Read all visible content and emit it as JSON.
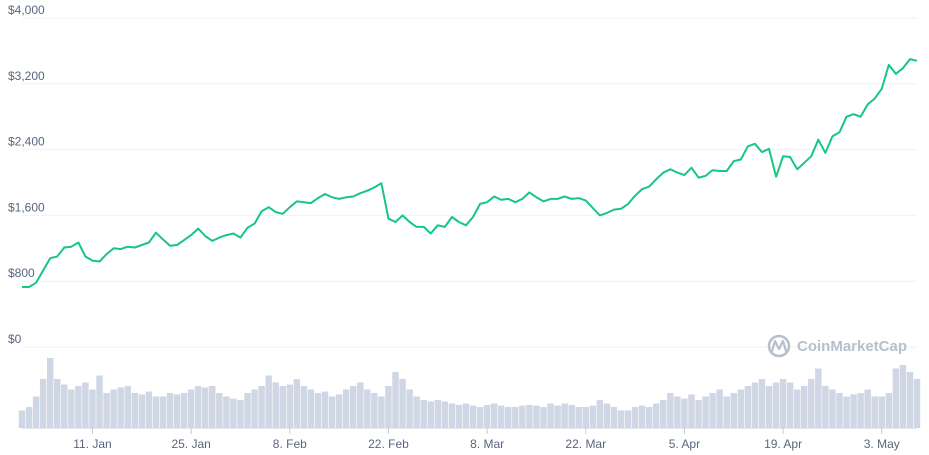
{
  "chart_data": {
    "type": "line",
    "watermark": "CoinMarketCap",
    "y_ticks": [
      "$0",
      "$800",
      "$1,600",
      "$2,400",
      "$3,200",
      "$4,000"
    ],
    "y_tick_values": [
      0,
      800,
      1600,
      2400,
      3200,
      4000
    ],
    "x_ticks": [
      "11. Jan",
      "25. Jan",
      "8. Feb",
      "22. Feb",
      "8. Mar",
      "22. Mar",
      "5. Apr",
      "19. Apr",
      "3. May"
    ],
    "x_tick_values": [
      "2021-01-11",
      "2021-01-25",
      "2021-02-08",
      "2021-02-22",
      "2021-03-08",
      "2021-03-22",
      "2021-04-05",
      "2021-04-19",
      "2021-05-03"
    ],
    "ylim": [
      0,
      4000
    ],
    "xlim": [
      "2021-01-01",
      "2021-05-08"
    ],
    "grid": true,
    "colors": {
      "price_line": "#16c784",
      "volume_bars": "#cfd6e4",
      "grid": "#eff2f5",
      "tick_text": "#58667e"
    },
    "price_series": {
      "dates": [
        "2021-01-01",
        "2021-01-02",
        "2021-01-03",
        "2021-01-04",
        "2021-01-05",
        "2021-01-06",
        "2021-01-07",
        "2021-01-08",
        "2021-01-09",
        "2021-01-10",
        "2021-01-11",
        "2021-01-12",
        "2021-01-13",
        "2021-01-14",
        "2021-01-15",
        "2021-01-16",
        "2021-01-17",
        "2021-01-18",
        "2021-01-19",
        "2021-01-20",
        "2021-01-21",
        "2021-01-22",
        "2021-01-23",
        "2021-01-24",
        "2021-01-25",
        "2021-01-26",
        "2021-01-27",
        "2021-01-28",
        "2021-01-29",
        "2021-01-30",
        "2021-01-31",
        "2021-02-01",
        "2021-02-02",
        "2021-02-03",
        "2021-02-04",
        "2021-02-05",
        "2021-02-06",
        "2021-02-07",
        "2021-02-08",
        "2021-02-09",
        "2021-02-10",
        "2021-02-11",
        "2021-02-12",
        "2021-02-13",
        "2021-02-14",
        "2021-02-15",
        "2021-02-16",
        "2021-02-17",
        "2021-02-18",
        "2021-02-19",
        "2021-02-20",
        "2021-02-21",
        "2021-02-22",
        "2021-02-23",
        "2021-02-24",
        "2021-02-25",
        "2021-02-26",
        "2021-02-27",
        "2021-02-28",
        "2021-03-01",
        "2021-03-02",
        "2021-03-03",
        "2021-03-04",
        "2021-03-05",
        "2021-03-06",
        "2021-03-07",
        "2021-03-08",
        "2021-03-09",
        "2021-03-10",
        "2021-03-11",
        "2021-03-12",
        "2021-03-13",
        "2021-03-14",
        "2021-03-15",
        "2021-03-16",
        "2021-03-17",
        "2021-03-18",
        "2021-03-19",
        "2021-03-20",
        "2021-03-21",
        "2021-03-22",
        "2021-03-23",
        "2021-03-24",
        "2021-03-25",
        "2021-03-26",
        "2021-03-27",
        "2021-03-28",
        "2021-03-29",
        "2021-03-30",
        "2021-03-31",
        "2021-04-01",
        "2021-04-02",
        "2021-04-03",
        "2021-04-04",
        "2021-04-05",
        "2021-04-06",
        "2021-04-07",
        "2021-04-08",
        "2021-04-09",
        "2021-04-10",
        "2021-04-11",
        "2021-04-12",
        "2021-04-13",
        "2021-04-14",
        "2021-04-15",
        "2021-04-16",
        "2021-04-17",
        "2021-04-18",
        "2021-04-19",
        "2021-04-20",
        "2021-04-21",
        "2021-04-22",
        "2021-04-23",
        "2021-04-24",
        "2021-04-25",
        "2021-04-26",
        "2021-04-27",
        "2021-04-28",
        "2021-04-29",
        "2021-04-30",
        "2021-05-01",
        "2021-05-02",
        "2021-05-03",
        "2021-05-04",
        "2021-05-05",
        "2021-05-06",
        "2021-05-07",
        "2021-05-08"
      ],
      "values": [
        730,
        730,
        780,
        930,
        1080,
        1100,
        1210,
        1220,
        1270,
        1100,
        1050,
        1040,
        1130,
        1200,
        1190,
        1220,
        1210,
        1240,
        1270,
        1390,
        1310,
        1230,
        1240,
        1300,
        1360,
        1440,
        1350,
        1290,
        1330,
        1360,
        1380,
        1330,
        1450,
        1500,
        1650,
        1700,
        1640,
        1620,
        1700,
        1770,
        1760,
        1750,
        1810,
        1860,
        1820,
        1800,
        1820,
        1830,
        1870,
        1900,
        1940,
        1990,
        1560,
        1520,
        1600,
        1520,
        1460,
        1460,
        1380,
        1480,
        1460,
        1580,
        1520,
        1480,
        1580,
        1740,
        1760,
        1830,
        1790,
        1800,
        1760,
        1800,
        1880,
        1820,
        1770,
        1800,
        1800,
        1830,
        1800,
        1810,
        1780,
        1690,
        1600,
        1630,
        1670,
        1680,
        1740,
        1840,
        1920,
        1950,
        2040,
        2120,
        2160,
        2120,
        2090,
        2180,
        2060,
        2080,
        2150,
        2140,
        2140,
        2260,
        2280,
        2440,
        2470,
        2370,
        2410,
        2070,
        2320,
        2310,
        2160,
        2240,
        2320,
        2520,
        2360,
        2560,
        2610,
        2800,
        2830,
        2800,
        2950,
        3020,
        3140,
        3430,
        3320,
        3390,
        3500,
        3480
      ],
      "stroke": "#16c784"
    },
    "volume_series": {
      "label": "Volume (relative, no axis shown)",
      "values": [
        0.25,
        0.3,
        0.45,
        0.7,
        1.0,
        0.7,
        0.62,
        0.55,
        0.6,
        0.65,
        0.55,
        0.75,
        0.5,
        0.55,
        0.58,
        0.6,
        0.5,
        0.48,
        0.52,
        0.45,
        0.45,
        0.5,
        0.48,
        0.5,
        0.55,
        0.6,
        0.58,
        0.6,
        0.5,
        0.45,
        0.42,
        0.4,
        0.5,
        0.55,
        0.6,
        0.75,
        0.65,
        0.6,
        0.62,
        0.7,
        0.6,
        0.55,
        0.5,
        0.52,
        0.45,
        0.48,
        0.55,
        0.6,
        0.65,
        0.55,
        0.5,
        0.45,
        0.6,
        0.8,
        0.7,
        0.55,
        0.45,
        0.4,
        0.38,
        0.4,
        0.38,
        0.35,
        0.33,
        0.35,
        0.32,
        0.3,
        0.33,
        0.35,
        0.32,
        0.3,
        0.3,
        0.32,
        0.33,
        0.32,
        0.3,
        0.35,
        0.32,
        0.35,
        0.33,
        0.3,
        0.3,
        0.32,
        0.4,
        0.35,
        0.3,
        0.25,
        0.25,
        0.3,
        0.32,
        0.3,
        0.35,
        0.4,
        0.5,
        0.45,
        0.42,
        0.48,
        0.4,
        0.45,
        0.5,
        0.55,
        0.45,
        0.5,
        0.55,
        0.6,
        0.65,
        0.7,
        0.6,
        0.65,
        0.7,
        0.65,
        0.55,
        0.6,
        0.7,
        0.85,
        0.6,
        0.55,
        0.5,
        0.45,
        0.48,
        0.5,
        0.55,
        0.45,
        0.45,
        0.5,
        0.85,
        0.9,
        0.8,
        0.7
      ],
      "fill": "#cfd6e4"
    }
  }
}
